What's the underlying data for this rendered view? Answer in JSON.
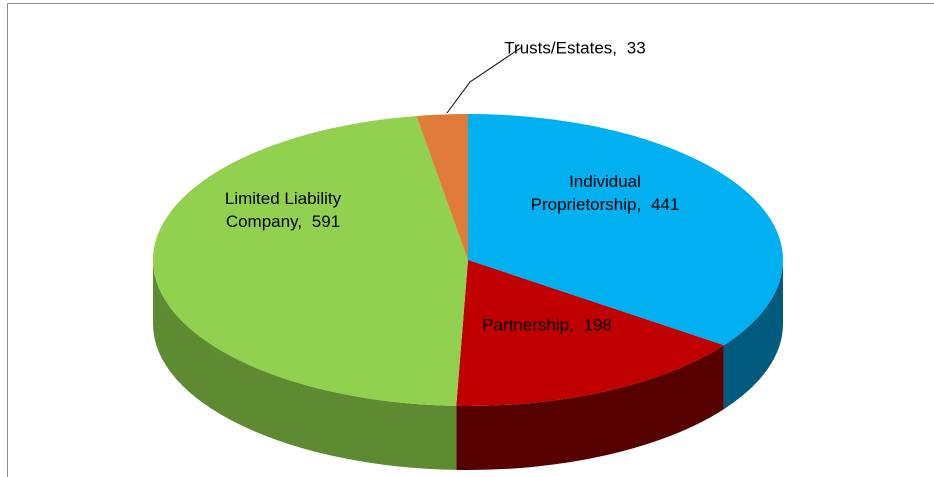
{
  "chart_data": {
    "type": "pie",
    "categories": [
      "Individual Proprietorship,",
      "Partnership,",
      "Limited Liability Company,",
      "Trusts/Estates,"
    ],
    "values": [
      441,
      198,
      591,
      33
    ],
    "colors": [
      "#00b0f0",
      "#c00000",
      "#92d050",
      "#e07b39"
    ],
    "side_colors": [
      "#005b7d",
      "#560000",
      "#5e8a31",
      "#9a4f1e"
    ]
  }
}
